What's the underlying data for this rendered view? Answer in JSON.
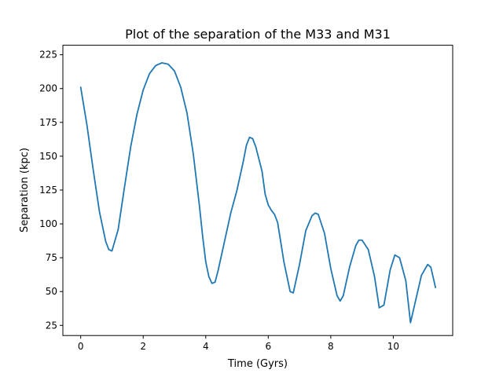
{
  "chart_data": {
    "type": "line",
    "title": "Plot of the separation of the M33 and M31",
    "xlabel": "Time (Gyrs)",
    "ylabel": "Separation (kpc)",
    "xlim": [
      -0.57,
      11.9
    ],
    "ylim": [
      17.5,
      232
    ],
    "xticks": [
      0,
      2,
      4,
      6,
      8,
      10
    ],
    "yticks": [
      25,
      50,
      75,
      100,
      125,
      150,
      175,
      200,
      225
    ],
    "grid": false,
    "series": [
      {
        "color": "#1f77b4",
        "x": [
          0.0,
          0.2,
          0.4,
          0.6,
          0.8,
          0.9,
          1.0,
          1.2,
          1.4,
          1.6,
          1.8,
          2.0,
          2.2,
          2.4,
          2.6,
          2.8,
          3.0,
          3.2,
          3.4,
          3.6,
          3.8,
          3.9,
          4.0,
          4.1,
          4.2,
          4.3,
          4.4,
          4.6,
          4.8,
          5.0,
          5.2,
          5.3,
          5.4,
          5.5,
          5.6,
          5.8,
          5.9,
          6.0,
          6.1,
          6.2,
          6.3,
          6.5,
          6.7,
          6.8,
          7.0,
          7.2,
          7.4,
          7.5,
          7.6,
          7.8,
          8.0,
          8.2,
          8.3,
          8.4,
          8.6,
          8.8,
          8.9,
          9.0,
          9.2,
          9.4,
          9.55,
          9.7,
          9.9,
          10.05,
          10.2,
          10.4,
          10.55,
          10.7,
          10.9,
          11.1,
          11.2,
          11.35
        ],
        "y": [
          201,
          173,
          140,
          109,
          87,
          81,
          80,
          96,
          127,
          157,
          181,
          199,
          211,
          217,
          219,
          218,
          213,
          201,
          182,
          152,
          113,
          91,
          72,
          61,
          56,
          57,
          66,
          87,
          108,
          125,
          146,
          158,
          164,
          163,
          157,
          139,
          122,
          114,
          110,
          107,
          101,
          72,
          50,
          49,
          70,
          95,
          106,
          108,
          107,
          93,
          67,
          47,
          43,
          47,
          68,
          84,
          88,
          88,
          81,
          61,
          38,
          40,
          66,
          77,
          75,
          58,
          27,
          42,
          62,
          70,
          68,
          53
        ]
      }
    ]
  }
}
